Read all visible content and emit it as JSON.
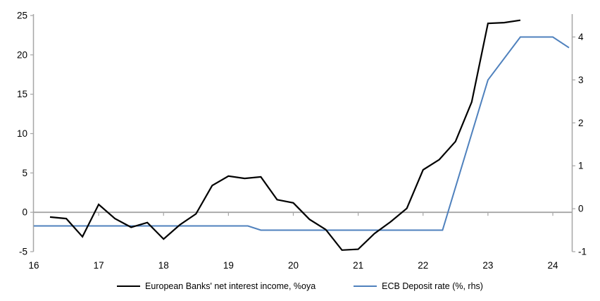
{
  "chart_data": {
    "type": "line",
    "title": "",
    "xlabel": "",
    "ylabel_left": "",
    "ylabel_right": "",
    "grid": false,
    "legend_position": "bottom",
    "x_axis": {
      "min": 16,
      "max": 24.3,
      "tick_years": [
        16,
        17,
        18,
        19,
        20,
        21,
        22,
        23,
        24
      ],
      "tick_labels": [
        "16",
        "17",
        "18",
        "19",
        "20",
        "21",
        "22",
        "23",
        "24"
      ]
    },
    "left_axis": {
      "min": -5,
      "max": 25,
      "ticks": [
        -5,
        0,
        5,
        10,
        15,
        20,
        25
      ],
      "tick_labels": [
        "-5",
        "0",
        "5",
        "10",
        "15",
        "20",
        "25"
      ]
    },
    "right_axis": {
      "min": -1,
      "max": 4.5,
      "ticks": [
        -1,
        0,
        1,
        2,
        3,
        4
      ],
      "tick_labels": [
        "-1",
        "0",
        "1",
        "2",
        "3",
        "4"
      ]
    },
    "zero_line_value": 0,
    "series": [
      {
        "name": "European Banks' net interest income, %oya",
        "axis": "left",
        "color": "#000000",
        "points": [
          [
            16.25,
            -0.6
          ],
          [
            16.5,
            -0.8
          ],
          [
            16.75,
            -3.1
          ],
          [
            17.0,
            1.0
          ],
          [
            17.25,
            -0.8
          ],
          [
            17.5,
            -1.9
          ],
          [
            17.75,
            -1.3
          ],
          [
            18.0,
            -3.4
          ],
          [
            18.25,
            -1.6
          ],
          [
            18.5,
            -0.2
          ],
          [
            18.75,
            3.4
          ],
          [
            19.0,
            4.6
          ],
          [
            19.25,
            4.3
          ],
          [
            19.5,
            4.5
          ],
          [
            19.75,
            1.6
          ],
          [
            20.0,
            1.2
          ],
          [
            20.25,
            -0.9
          ],
          [
            20.5,
            -2.2
          ],
          [
            20.75,
            -4.8
          ],
          [
            21.0,
            -4.7
          ],
          [
            21.25,
            -2.7
          ],
          [
            21.5,
            -1.2
          ],
          [
            21.75,
            0.5
          ],
          [
            22.0,
            5.4
          ],
          [
            22.25,
            6.7
          ],
          [
            22.5,
            9.0
          ],
          [
            22.75,
            14.0
          ],
          [
            23.0,
            24.0
          ],
          [
            23.25,
            24.1
          ],
          [
            23.5,
            24.4
          ]
        ]
      },
      {
        "name": "ECB Deposit rate (%, rhs)",
        "axis": "right",
        "color": "#4f81bd",
        "points": [
          [
            16.0,
            -0.4
          ],
          [
            19.3,
            -0.4
          ],
          [
            19.5,
            -0.5
          ],
          [
            22.3,
            -0.5
          ],
          [
            23.0,
            3.0
          ],
          [
            23.5,
            4.0
          ],
          [
            24.0,
            4.0
          ],
          [
            24.25,
            3.75
          ]
        ]
      }
    ]
  },
  "legend": {
    "items": [
      {
        "label": "European Banks' net interest income, %oya",
        "color": "#000000"
      },
      {
        "label": "ECB Deposit rate (%, rhs)",
        "color": "#4f81bd"
      }
    ]
  },
  "colors": {
    "background": "#ffffff",
    "axis": "#a6a6a6",
    "zero_line": "#a6a6a6",
    "tick_text": "#000000"
  }
}
